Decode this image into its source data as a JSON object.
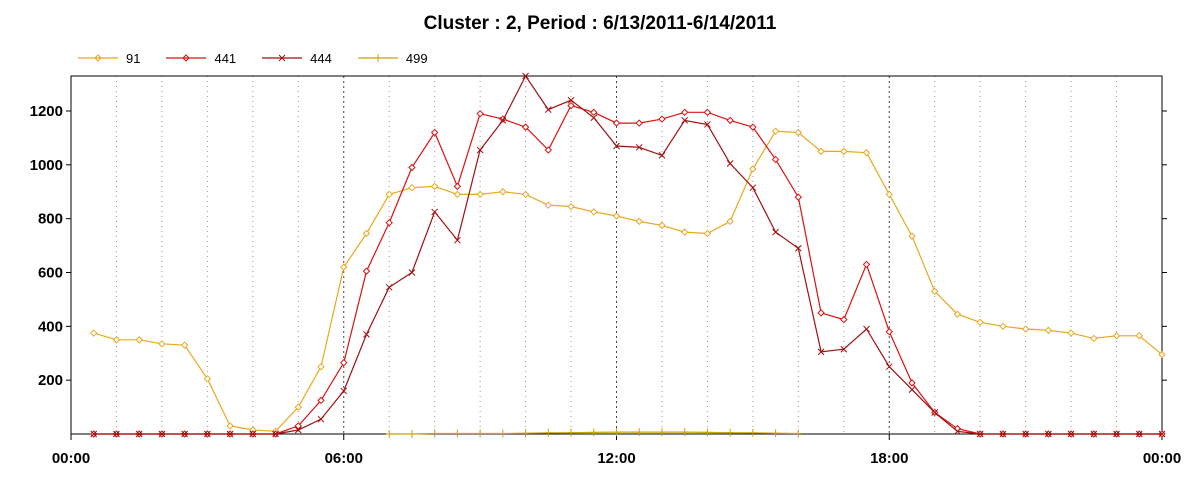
{
  "chart_data": {
    "type": "line",
    "title": "Cluster : 2, Period : 6/13/2011-6/14/2011",
    "xlabel": "",
    "ylabel": "",
    "xlim": [
      0,
      24
    ],
    "ylim": [
      0,
      1330
    ],
    "x_ticks": [
      {
        "x": 0,
        "label": "00:00"
      },
      {
        "x": 6,
        "label": "06:00"
      },
      {
        "x": 12,
        "label": "12:00"
      },
      {
        "x": 18,
        "label": "18:00"
      },
      {
        "x": 24,
        "label": "00:00"
      }
    ],
    "y_ticks": [
      200,
      400,
      600,
      800,
      1000,
      1200
    ],
    "grid": "dotted vertical lines",
    "legend_position": "top-left",
    "x": [
      0.5,
      1.0,
      1.5,
      2.0,
      2.5,
      3.0,
      3.5,
      4.0,
      4.5,
      5.0,
      5.5,
      6.0,
      6.5,
      7.0,
      7.5,
      8.0,
      8.5,
      9.0,
      9.5,
      10.0,
      10.5,
      11.0,
      11.5,
      12.0,
      12.5,
      13.0,
      13.5,
      14.0,
      14.5,
      15.0,
      15.5,
      16.0,
      16.5,
      17.0,
      17.5,
      18.0,
      18.5,
      19.0,
      19.5,
      20.0,
      20.5,
      21.0,
      21.5,
      22.0,
      22.5,
      23.0,
      23.5,
      24.0
    ],
    "series": [
      {
        "name": "91",
        "color": "#e8a820",
        "marker": "diamond",
        "values": [
          375,
          350,
          350,
          335,
          330,
          205,
          30,
          15,
          10,
          100,
          250,
          620,
          745,
          890,
          915,
          920,
          890,
          890,
          900,
          890,
          850,
          845,
          825,
          810,
          790,
          775,
          750,
          745,
          790,
          985,
          1125,
          1120,
          1050,
          1050,
          1045,
          890,
          735,
          530,
          445,
          415,
          400,
          390,
          385,
          375,
          355,
          365,
          365,
          295
        ]
      },
      {
        "name": "441",
        "color": "#dd1111",
        "marker": "diamond",
        "values": [
          0,
          0,
          0,
          0,
          0,
          0,
          0,
          0,
          0,
          30,
          125,
          265,
          605,
          785,
          990,
          1120,
          920,
          1190,
          1170,
          1140,
          1055,
          1220,
          1195,
          1155,
          1155,
          1170,
          1195,
          1195,
          1165,
          1140,
          1020,
          880,
          450,
          425,
          630,
          380,
          190,
          80,
          20,
          0,
          0,
          0,
          0,
          0,
          0,
          0,
          0,
          0
        ]
      },
      {
        "name": "444",
        "color": "#a01010",
        "marker": "x",
        "values": [
          0,
          0,
          0,
          0,
          0,
          0,
          0,
          0,
          0,
          15,
          55,
          160,
          370,
          545,
          600,
          825,
          720,
          1055,
          1165,
          1330,
          1205,
          1240,
          1175,
          1070,
          1065,
          1035,
          1165,
          1150,
          1005,
          915,
          750,
          690,
          305,
          315,
          390,
          250,
          165,
          80,
          10,
          0,
          0,
          0,
          0,
          0,
          0,
          0,
          0,
          0
        ]
      },
      {
        "name": "499",
        "color": "#c8a400",
        "marker": "plus",
        "values": [
          null,
          null,
          null,
          null,
          null,
          null,
          null,
          null,
          null,
          null,
          null,
          null,
          null,
          0,
          0,
          2,
          2,
          2,
          2,
          3,
          4,
          5,
          6,
          7,
          7,
          7,
          7,
          6,
          5,
          4,
          3,
          2,
          null,
          null,
          null,
          null,
          null,
          null,
          null,
          null,
          null,
          null,
          null,
          null,
          null,
          null,
          null,
          null
        ]
      }
    ]
  }
}
